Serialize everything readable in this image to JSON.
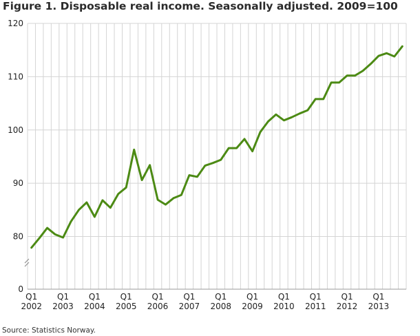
{
  "title": "Figure 1. Disposable real income. Seasonally adjusted. 2009=100",
  "source": "Source: Statistics Norway.",
  "chart_data": {
    "type": "line",
    "title": "Figure 1. Disposable real income. Seasonally adjusted. 2009=100",
    "xlabel": "",
    "ylabel": "",
    "ylim": [
      0,
      120
    ],
    "y_axis_break": [
      0,
      80
    ],
    "y_ticks": [
      "0",
      "80",
      "90",
      "100",
      "110",
      "120"
    ],
    "grid": "vertical lines per quarter, horizontal at y ticks",
    "line_color": "#4c8a14",
    "x_tick_labels": [
      {
        "q": "Q1",
        "year": "2002"
      },
      {
        "q": "Q1",
        "year": "2003"
      },
      {
        "q": "Q1",
        "year": "2004"
      },
      {
        "q": "Q1",
        "year": "2005"
      },
      {
        "q": "Q1",
        "year": "2006"
      },
      {
        "q": "Q1",
        "year": "2007"
      },
      {
        "q": "Q1",
        "year": "2008"
      },
      {
        "q": "Q1",
        "year": "2009"
      },
      {
        "q": "Q1",
        "year": "2010"
      },
      {
        "q": "Q1",
        "year": "2011"
      },
      {
        "q": "Q1",
        "year": "2012"
      },
      {
        "q": "Q1",
        "year": "2013"
      }
    ],
    "x": [
      "2002Q1",
      "2002Q2",
      "2002Q3",
      "2002Q4",
      "2003Q1",
      "2003Q2",
      "2003Q3",
      "2003Q4",
      "2004Q1",
      "2004Q2",
      "2004Q3",
      "2004Q4",
      "2005Q1",
      "2005Q2",
      "2005Q3",
      "2005Q4",
      "2006Q1",
      "2006Q2",
      "2006Q3",
      "2006Q4",
      "2007Q1",
      "2007Q2",
      "2007Q3",
      "2007Q4",
      "2008Q1",
      "2008Q2",
      "2008Q3",
      "2008Q4",
      "2009Q1",
      "2009Q2",
      "2009Q3",
      "2009Q4",
      "2010Q1",
      "2010Q2",
      "2010Q3",
      "2010Q4",
      "2011Q1",
      "2011Q2",
      "2011Q3",
      "2011Q4",
      "2012Q1",
      "2012Q2",
      "2012Q3",
      "2012Q4",
      "2013Q1",
      "2013Q2",
      "2013Q3",
      "2013Q4"
    ],
    "values": [
      77.9,
      79.7,
      81.6,
      80.4,
      79.8,
      82.8,
      85.0,
      86.4,
      83.7,
      86.8,
      85.4,
      88.0,
      89.2,
      96.3,
      90.6,
      93.4,
      86.9,
      86.0,
      87.2,
      87.8,
      91.5,
      91.2,
      93.3,
      93.8,
      94.4,
      96.6,
      96.6,
      98.3,
      96.0,
      99.6,
      101.6,
      102.9,
      101.8,
      102.4,
      103.1,
      103.7,
      105.8,
      105.8,
      108.9,
      108.9,
      110.2,
      110.2,
      111.1,
      112.4,
      113.9,
      114.4,
      113.8,
      115.7
    ]
  }
}
